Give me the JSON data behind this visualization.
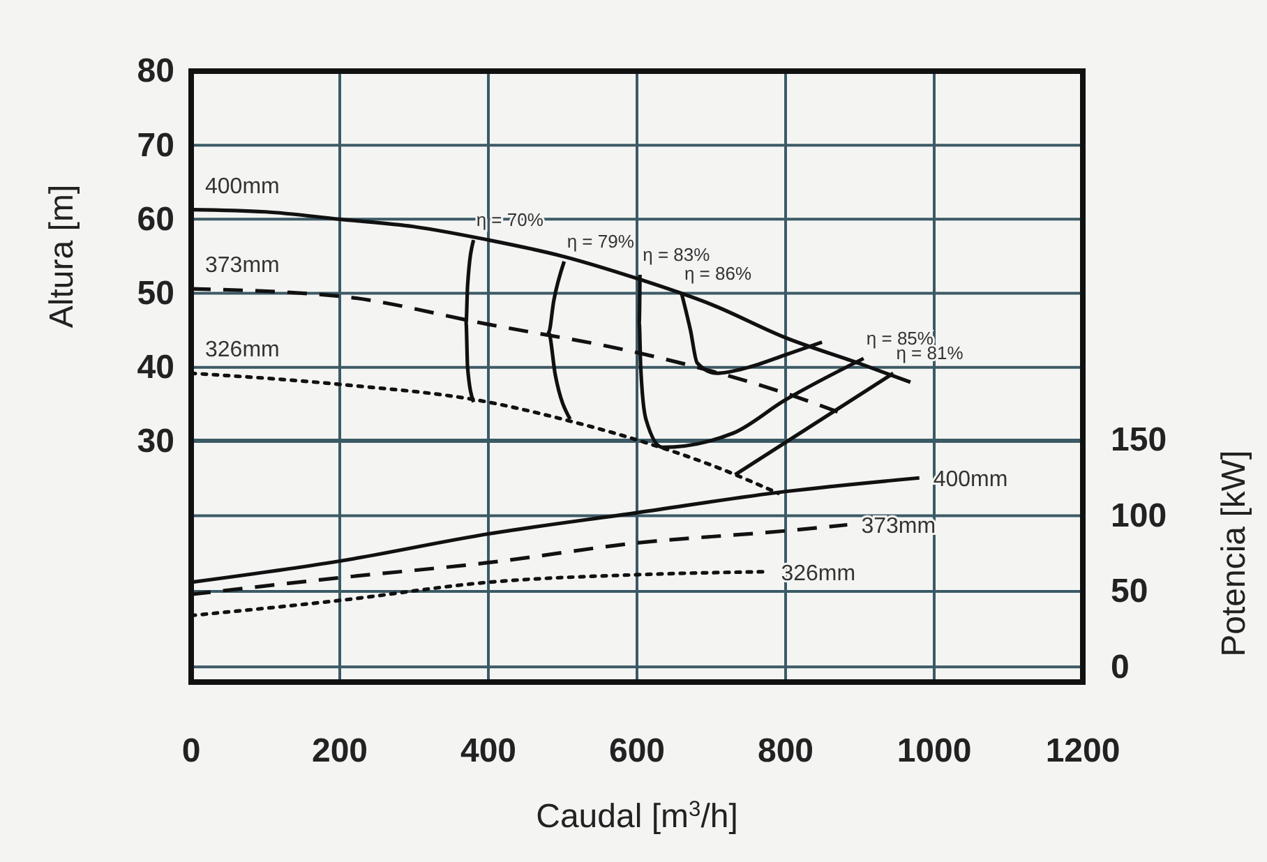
{
  "chart_data": {
    "type": "line",
    "xlabel": "Caudal [m$^{3}$/h]",
    "ylabel": "Altura [m]",
    "y2label": "Potencia [kW]",
    "xlim": [
      0,
      1200
    ],
    "xticks": [
      0,
      200,
      400,
      600,
      800,
      1000,
      1200
    ],
    "ylim": [
      -2.5,
      80
    ],
    "yticks": [
      30,
      40,
      50,
      60,
      70,
      80
    ],
    "y2lim": [
      -10,
      394
    ],
    "y2ticks": [
      0,
      50,
      100,
      150
    ],
    "grid": true,
    "series": [
      {
        "name": "400mm",
        "color": "#111111",
        "line_style": "solid",
        "x": [
          0,
          100,
          200,
          300,
          400,
          500,
          600,
          700,
          800,
          900,
          968
        ],
        "values": [
          61.3,
          61,
          60,
          59,
          57.2,
          55,
          52,
          48.5,
          44,
          40.5,
          38
        ]
      },
      {
        "name": "373mm",
        "color": "#111111",
        "line_style": "dashed",
        "x": [
          0,
          200,
          400,
          600,
          700,
          800,
          870
        ],
        "values": [
          50.6,
          49.6,
          45.8,
          42,
          39.5,
          36.5,
          34
        ]
      },
      {
        "name": "326mm",
        "color": "#111111",
        "line_style": "dotted",
        "x": [
          0,
          200,
          400,
          500,
          600,
          700,
          790
        ],
        "values": [
          39.2,
          37.7,
          35.3,
          33,
          30.2,
          26.8,
          23
        ]
      },
      {
        "color": "#111111",
        "line_style": "solid",
        "x": [
          380,
          372,
          370,
          372,
          380
        ],
        "values": [
          57.2,
          51,
          46,
          40,
          35.3
        ]
      },
      {
        "color": "#111111",
        "line_style": "solid",
        "x": [
          502,
          488,
          481,
          490,
          510
        ],
        "values": [
          54.3,
          49,
          44.7,
          39,
          33
        ]
      },
      {
        "color": "#111111",
        "line_style": "solid",
        "x": [
          604,
          603,
          605,
          612,
          634,
          729,
          798,
          905
        ],
        "values": [
          52.5,
          46,
          40,
          33,
          29.2,
          31.1,
          35.5,
          41.2
        ]
      },
      {
        "color": "#111111",
        "line_style": "solid",
        "x": [
          660,
          672,
          681,
          707,
          750,
          800,
          849
        ],
        "values": [
          50,
          45,
          40.6,
          39.2,
          40,
          41.7,
          43.4
        ]
      },
      {
        "color": "#111111",
        "line_style": "solid",
        "x": [
          732,
          945
        ],
        "values": [
          25.5,
          39.2
        ]
      },
      {
        "name": "400mm",
        "color": "#111111",
        "line_style": "solid",
        "axis": "y2",
        "x": [
          0,
          200,
          400,
          600,
          800,
          980
        ],
        "values": [
          56,
          70,
          88,
          102,
          116,
          125
        ]
      },
      {
        "name": "373mm",
        "color": "#111111",
        "line_style": "dashed",
        "axis": "y2",
        "x": [
          0,
          200,
          400,
          600,
          800,
          883
        ],
        "values": [
          48,
          59,
          69,
          82,
          90,
          94
        ]
      },
      {
        "name": "326mm",
        "color": "#111111",
        "line_style": "dotted",
        "axis": "y2",
        "x": [
          0,
          200,
          400,
          600,
          775
        ],
        "values": [
          34,
          44,
          56,
          61,
          63
        ]
      }
    ],
    "annotations": [
      {
        "text": "η = 70%",
        "x": 380,
        "y": 57.2
      },
      {
        "text": "η = 79%",
        "x": 502,
        "y": 54.3
      },
      {
        "text": "η = 83%",
        "x": 604,
        "y": 52.5
      },
      {
        "text": "η = 86%",
        "x": 660,
        "y": 50
      },
      {
        "text": "η = 85%",
        "x": 905,
        "y": 41.2
      },
      {
        "text": "η = 81%",
        "x": 945,
        "y": 39.2
      }
    ]
  }
}
